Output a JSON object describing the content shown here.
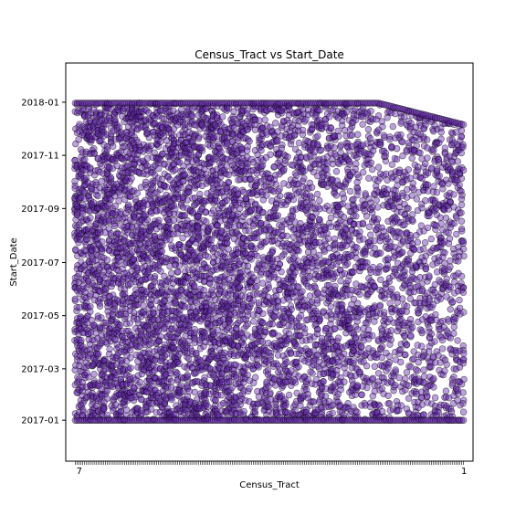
{
  "chart_data": {
    "type": "scatter",
    "title": "Census_Tract vs Start_Date",
    "xlabel": "Census_Tract",
    "ylabel": "Start_Date",
    "x_tick_labels_first": "7",
    "x_tick_labels_last": "1",
    "y_ticks": [
      "2017-01",
      "2017-03",
      "2017-05",
      "2017-07",
      "2017-09",
      "2017-11",
      "2018-01"
    ],
    "y_range": [
      "2016-11-15",
      "2018-02-15"
    ],
    "x_range": [
      -5,
      210
    ],
    "x_categories_count": 206,
    "date_span": [
      "2017-01-01",
      "2017-12-31"
    ],
    "grid": false,
    "legend": "none",
    "marker_color": "#6a2bb5",
    "marker_edge": "#000000"
  }
}
